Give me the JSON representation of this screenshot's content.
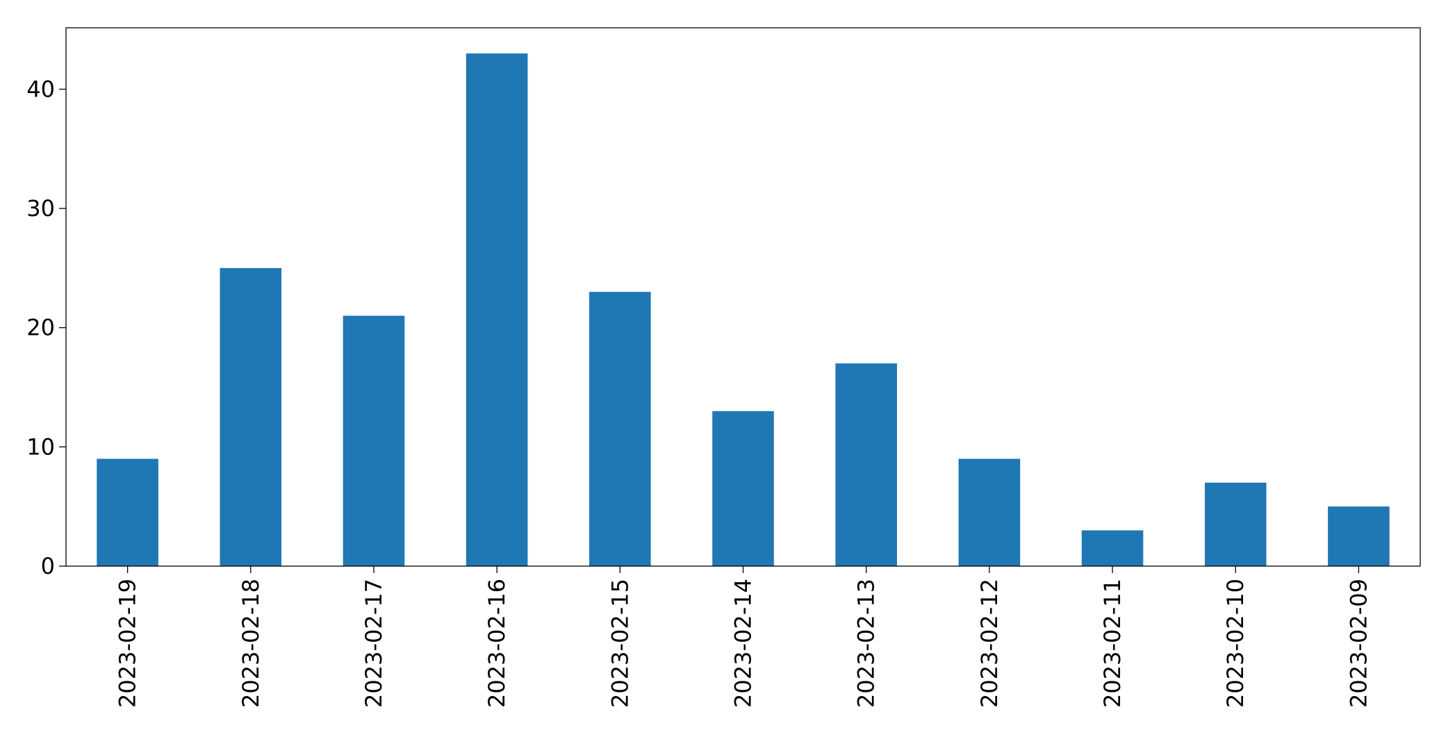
{
  "chart_data": {
    "type": "bar",
    "title": "",
    "xlabel": "",
    "ylabel": "",
    "categories": [
      "2023-02-19",
      "2023-02-18",
      "2023-02-17",
      "2023-02-16",
      "2023-02-15",
      "2023-02-14",
      "2023-02-13",
      "2023-02-12",
      "2023-02-11",
      "2023-02-10",
      "2023-02-09"
    ],
    "values": [
      9,
      25,
      21,
      43,
      23,
      13,
      17,
      9,
      3,
      7,
      5
    ],
    "ylim": [
      0,
      45.15
    ],
    "yticks": [
      0,
      10,
      20,
      30,
      40
    ],
    "grid": false,
    "legend": "none",
    "bar_color": "#1f77b4"
  }
}
